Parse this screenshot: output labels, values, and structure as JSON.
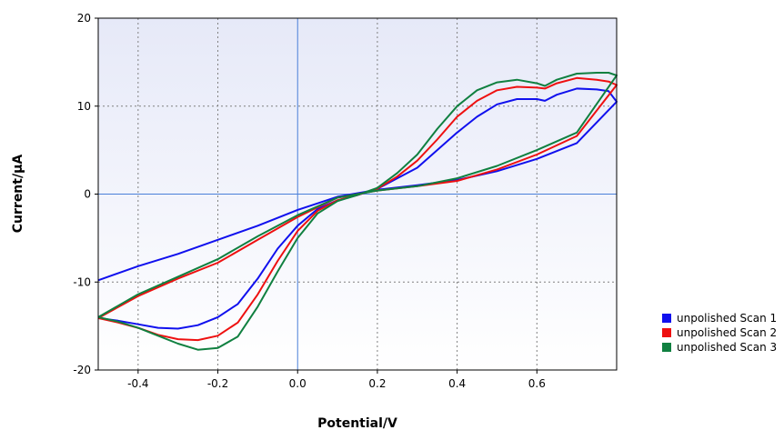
{
  "chart_data": {
    "type": "line",
    "xlabel": "Potential/V",
    "ylabel": "Current/μA",
    "xlim": [
      -0.5,
      0.8
    ],
    "ylim": [
      -20,
      20
    ],
    "x_ticks": [
      -0.4,
      -0.2,
      0.0,
      0.2,
      0.4,
      0.6
    ],
    "x_tick_labels": [
      "-0.4",
      "-0.2",
      "0.0",
      "0.2",
      "0.4",
      "0.6"
    ],
    "y_ticks": [
      -20,
      -10,
      0,
      10,
      20
    ],
    "y_tick_labels": [
      "-20",
      "-10",
      "0",
      "10",
      "20"
    ],
    "grid": true,
    "zero_lines": true,
    "legend_position": "right",
    "series": [
      {
        "name": "unpolished Scan 1",
        "color": "#1010ee",
        "x": [
          -0.5,
          -0.4,
          -0.3,
          -0.2,
          -0.1,
          0.0,
          0.1,
          0.2,
          0.3,
          0.4,
          0.5,
          0.6,
          0.7,
          0.8,
          0.78,
          0.75,
          0.7,
          0.65,
          0.62,
          0.6,
          0.55,
          0.5,
          0.45,
          0.4,
          0.35,
          0.3,
          0.25,
          0.2,
          0.15,
          0.1,
          0.05,
          0.0,
          -0.05,
          -0.1,
          -0.15,
          -0.2,
          -0.25,
          -0.3,
          -0.35,
          -0.4,
          -0.45,
          -0.5
        ],
        "y": [
          -9.8,
          -8.2,
          -6.8,
          -5.2,
          -3.6,
          -1.8,
          -0.3,
          0.5,
          1.0,
          1.6,
          2.6,
          4.0,
          5.8,
          10.5,
          11.7,
          11.9,
          12.0,
          11.3,
          10.6,
          10.8,
          10.8,
          10.2,
          8.8,
          7.0,
          5.0,
          3.0,
          1.8,
          0.6,
          -0.1,
          -0.7,
          -1.7,
          -3.6,
          -6.2,
          -9.6,
          -12.5,
          -14.0,
          -14.9,
          -15.3,
          -15.2,
          -14.8,
          -14.4,
          -14.1
        ]
      },
      {
        "name": "unpolished Scan 2",
        "color": "#ee1010",
        "x": [
          -0.5,
          -0.4,
          -0.3,
          -0.2,
          -0.1,
          0.0,
          0.1,
          0.2,
          0.3,
          0.4,
          0.5,
          0.6,
          0.7,
          0.8,
          0.78,
          0.75,
          0.7,
          0.65,
          0.62,
          0.6,
          0.55,
          0.5,
          0.45,
          0.4,
          0.35,
          0.3,
          0.25,
          0.2,
          0.15,
          0.1,
          0.05,
          0.0,
          -0.05,
          -0.1,
          -0.15,
          -0.2,
          -0.25,
          -0.3,
          -0.35,
          -0.4,
          -0.45,
          -0.5
        ],
        "y": [
          -14.1,
          -11.6,
          -9.6,
          -7.8,
          -5.2,
          -2.6,
          -0.4,
          0.4,
          0.9,
          1.5,
          2.8,
          4.5,
          6.6,
          12.4,
          12.8,
          13.0,
          13.2,
          12.6,
          12.0,
          12.1,
          12.2,
          11.8,
          10.6,
          8.8,
          6.2,
          3.8,
          2.0,
          0.6,
          -0.1,
          -0.7,
          -1.9,
          -4.2,
          -7.6,
          -11.4,
          -14.6,
          -16.1,
          -16.6,
          -16.5,
          -16.0,
          -15.2,
          -14.6,
          -14.1
        ]
      },
      {
        "name": "unpolished Scan 3",
        "color": "#108040",
        "x": [
          -0.5,
          -0.4,
          -0.3,
          -0.2,
          -0.1,
          0.0,
          0.1,
          0.2,
          0.3,
          0.4,
          0.5,
          0.6,
          0.7,
          0.8,
          0.78,
          0.75,
          0.7,
          0.65,
          0.62,
          0.6,
          0.55,
          0.5,
          0.45,
          0.4,
          0.35,
          0.3,
          0.25,
          0.2,
          0.15,
          0.1,
          0.05,
          0.0,
          -0.05,
          -0.1,
          -0.15,
          -0.2,
          -0.25,
          -0.3,
          -0.35,
          -0.4,
          -0.45,
          -0.5
        ],
        "y": [
          -14.0,
          -11.4,
          -9.4,
          -7.4,
          -4.8,
          -2.4,
          -0.4,
          0.4,
          0.9,
          1.8,
          3.2,
          5.0,
          7.0,
          13.5,
          13.8,
          13.8,
          13.7,
          13.0,
          12.3,
          12.6,
          13.0,
          12.7,
          11.8,
          10.0,
          7.4,
          4.5,
          2.4,
          0.7,
          -0.1,
          -0.8,
          -2.2,
          -5.0,
          -8.8,
          -12.8,
          -16.2,
          -17.5,
          -17.7,
          -17.0,
          -16.1,
          -15.2,
          -14.5,
          -14.0
        ]
      }
    ]
  }
}
